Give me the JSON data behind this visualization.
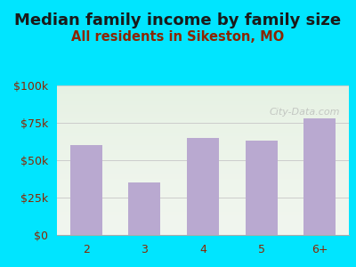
{
  "title": "Median family income by family size",
  "subtitle": "All residents in Sikeston, MO",
  "categories": [
    "2",
    "3",
    "4",
    "5",
    "6+"
  ],
  "values": [
    60000,
    35000,
    65000,
    63000,
    78000
  ],
  "bar_color": "#b9a9d0",
  "background_outer": "#00e5ff",
  "background_inner": "#f0f5ee",
  "title_color": "#1a1a1a",
  "subtitle_color": "#8b2500",
  "tick_color": "#8b2500",
  "grid_color": "#cccccc",
  "ylim": [
    0,
    100000
  ],
  "yticks": [
    0,
    25000,
    50000,
    75000,
    100000
  ],
  "ytick_labels": [
    "$0",
    "$25k",
    "$50k",
    "$75k",
    "$100k"
  ],
  "watermark": "City-Data.com",
  "title_fontsize": 13,
  "subtitle_fontsize": 10.5,
  "tick_fontsize": 9
}
